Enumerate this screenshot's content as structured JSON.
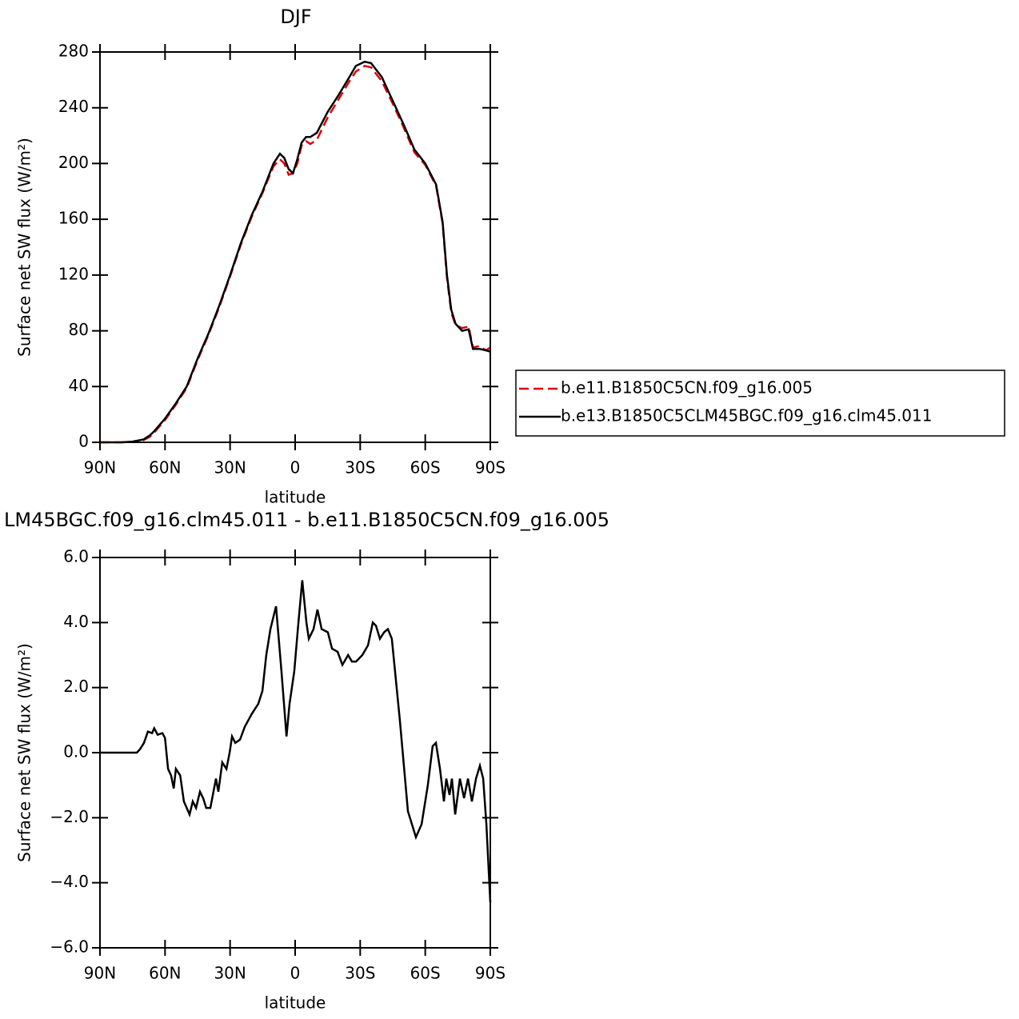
{
  "chart_data": [
    {
      "type": "line",
      "title": "DJF",
      "xlabel": "latitude",
      "ylabel": "Surface net SW flux (W/m²)",
      "xlim": [
        90,
        -90
      ],
      "xticks": [
        {
          "value": 90,
          "label": "90N"
        },
        {
          "value": 60,
          "label": "60N"
        },
        {
          "value": 30,
          "label": "30N"
        },
        0,
        {
          "value": -30,
          "label": "30S"
        },
        {
          "value": -60,
          "label": "60S"
        },
        {
          "value": -90,
          "label": "90S"
        }
      ],
      "ylim": [
        0,
        280
      ],
      "yticks": [
        0,
        40,
        80,
        120,
        160,
        200,
        240,
        280
      ],
      "legend": "right",
      "x": [
        90,
        80,
        75,
        70,
        67,
        65,
        60,
        55,
        50,
        45,
        40,
        35,
        30,
        25,
        20,
        15,
        10,
        7,
        5,
        3,
        1,
        -1,
        -3,
        -5,
        -7,
        -10,
        -15,
        -20,
        -25,
        -28,
        -32,
        -35,
        -40,
        -45,
        -50,
        -55,
        -60,
        -65,
        -68,
        -70,
        -72,
        -74,
        -77,
        -80,
        -82,
        -85,
        -88,
        -90
      ],
      "series": [
        {
          "name": "b.e11.B1850C5CN.f09_g16.005",
          "color": "#e00000",
          "style": "dashed",
          "values": [
            0,
            0,
            0.3,
            1.5,
            4,
            7,
            16,
            27,
            39,
            59,
            77,
            97,
            119,
            142,
            162,
            179,
            198,
            203,
            200,
            192,
            193,
            200,
            213,
            216,
            214,
            217,
            233,
            246,
            259,
            266,
            270,
            269,
            259,
            243,
            226,
            208,
            199,
            184,
            157,
            118,
            93,
            84,
            82,
            83,
            68,
            69,
            66,
            68
          ]
        },
        {
          "name": "b.e13.B1850C5CLM45BGC.f09_g16.clm45.011",
          "color": "#000000",
          "style": "solid",
          "values": [
            0,
            0,
            0.5,
            2,
            5,
            8,
            17,
            28,
            40,
            60,
            78,
            98,
            120,
            143,
            163,
            180,
            200,
            207,
            204,
            196,
            193,
            203,
            215,
            219,
            219,
            222,
            237,
            249,
            262,
            270,
            273,
            272,
            262,
            245,
            228,
            210,
            200,
            185,
            158,
            120,
            95,
            85,
            80,
            81,
            67,
            67,
            66,
            65
          ]
        }
      ]
    },
    {
      "type": "line",
      "title": "LM45BGC.f09_g16.clm45.011 - b.e11.B1850C5CN.f09_g16.005",
      "xlabel": "latitude",
      "ylabel": "Surface net SW flux (W/m²)",
      "xlim": [
        90,
        -90
      ],
      "xticks": [
        {
          "value": 90,
          "label": "90N"
        },
        {
          "value": 60,
          "label": "60N"
        },
        {
          "value": 30,
          "label": "30N"
        },
        0,
        {
          "value": -30,
          "label": "30S"
        },
        {
          "value": -60,
          "label": "60S"
        },
        {
          "value": -90,
          "label": "90S"
        }
      ],
      "ylim": [
        -6,
        6
      ],
      "yticks": [
        {
          "value": -6,
          "label": "−6.0"
        },
        {
          "value": -4,
          "label": "−4.0"
        },
        {
          "value": -2,
          "label": "−2.0"
        },
        {
          "value": 0,
          "label": "0.0"
        },
        {
          "value": 2,
          "label": "2.0"
        },
        {
          "value": 4,
          "label": "4.0"
        },
        {
          "value": 6,
          "label": "6.0"
        }
      ],
      "x": [
        90,
        73,
        71.6,
        69.7,
        67.9,
        66,
        65,
        63.4,
        61.2,
        60,
        58.6,
        57.2,
        56,
        55,
        53,
        51.3,
        48.7,
        47.2,
        45.7,
        43.9,
        42.4,
        41,
        39.1,
        36.5,
        35.4,
        33.6,
        31.7,
        30.2,
        29.1,
        27.6,
        25.4,
        23.2,
        19.9,
        17,
        15.1,
        13.3,
        11.4,
        8.8,
        6.3,
        4,
        2.6,
        0.4,
        -1.5,
        -3.3,
        -5.2,
        -6.3,
        -8.5,
        -10.3,
        -12.2,
        -15.1,
        -17,
        -19.6,
        -21.8,
        -24.4,
        -26.2,
        -28.1,
        -31,
        -33.6,
        -35.8,
        -37.3,
        -39.1,
        -41,
        -42.8,
        -44.6,
        -48.3,
        -52,
        -55.7,
        -58.3,
        -61.2,
        -63.4,
        -64.9,
        -66.8,
        -68.6,
        -69.7,
        -71.2,
        -72.3,
        -73.8,
        -76,
        -77.9,
        -79.7,
        -81.5,
        -83.4,
        -85.2,
        -86.7,
        -88.2,
        -90
      ],
      "series": [
        {
          "color": "#000000",
          "style": "solid",
          "values": [
            0,
            0,
            0.1,
            0.3,
            0.65,
            0.6,
            0.75,
            0.55,
            0.6,
            0.45,
            -0.5,
            -0.7,
            -1.1,
            -0.5,
            -0.7,
            -1.5,
            -1.9,
            -1.5,
            -1.7,
            -1.2,
            -1.4,
            -1.7,
            -1.7,
            -0.8,
            -1.2,
            -0.3,
            -0.5,
            0,
            0.5,
            0.3,
            0.4,
            0.8,
            1.2,
            1.5,
            1.9,
            3,
            3.8,
            4.5,
            2.5,
            0.5,
            1.5,
            2.5,
            4,
            5.3,
            4,
            3.5,
            3.8,
            4.4,
            3.8,
            3.7,
            3.2,
            3.1,
            2.7,
            3,
            2.8,
            2.8,
            3,
            3.3,
            4,
            3.9,
            3.5,
            3.7,
            3.8,
            3.5,
            1,
            -1.8,
            -2.6,
            -2.2,
            -1,
            0.2,
            0.3,
            -0.5,
            -1.5,
            -0.8,
            -1.3,
            -0.8,
            -1.9,
            -0.8,
            -1.4,
            -0.8,
            -1.5,
            -0.8,
            -0.4,
            -0.8,
            -2.2,
            -4.6
          ]
        }
      ]
    }
  ]
}
